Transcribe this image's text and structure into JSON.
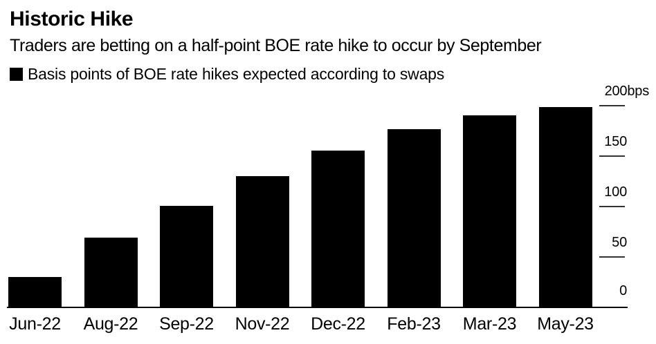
{
  "chart_data": {
    "type": "bar",
    "title": "Historic Hike",
    "subtitle": "Traders are betting on a half-point BOE rate hike to occur by September",
    "series_name": "Basis points of BOE rate hikes expected according to swaps",
    "categories": [
      "Jun-22",
      "Aug-22",
      "Sep-22",
      "Nov-22",
      "Dec-22",
      "Feb-23",
      "Mar-23",
      "May-23"
    ],
    "values": [
      30,
      69,
      100,
      130,
      155,
      176,
      190,
      198
    ],
    "unit": "bps",
    "xlabel": "",
    "ylabel": "bps",
    "ylim": [
      0,
      200
    ],
    "yticks": [
      {
        "value": 0,
        "label": "0"
      },
      {
        "value": 50,
        "label": "50"
      },
      {
        "value": 100,
        "label": "100"
      },
      {
        "value": 150,
        "label": "150"
      },
      {
        "value": 200,
        "label": "200bps"
      }
    ],
    "bar_color": "#000000",
    "text_color": "#000000",
    "background_color": "#ffffff",
    "grid": false,
    "legend_position": "top-left",
    "y_axis_side": "right"
  }
}
